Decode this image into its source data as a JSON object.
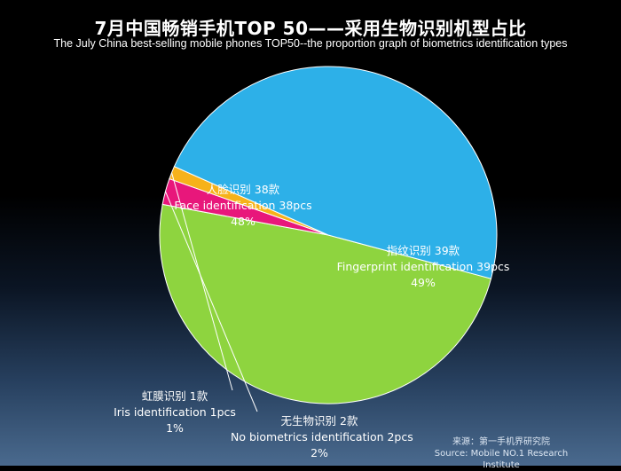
{
  "title": "7月中国畅销手机TOP 50——采用生物识别机型占比",
  "subtitle": "The July China best-selling mobile phones TOP50--the proportion graph of biometrics identification types",
  "source": {
    "zh": "来源：第一手机界研究院",
    "en": "Source: Mobile NO.1 Research Institute"
  },
  "chart_data": {
    "type": "pie",
    "title": "7月中国畅销手机TOP 50——采用生物识别机型占比",
    "subtitle": "The July China best-selling mobile phones TOP50--the proportion graph of biometrics identification types",
    "slices": [
      {
        "key": "finger",
        "zh": "指纹识别  39款",
        "en": "Fingerprint identification 39pcs",
        "count": 39,
        "percent": "49%",
        "color": "#8ed43f"
      },
      {
        "key": "none",
        "zh": "无生物识别  2款",
        "en": "No biometrics identification 2pcs",
        "count": 2,
        "percent": "2%",
        "color": "#e8177b"
      },
      {
        "key": "iris",
        "zh": "虹膜识别  1款",
        "en": "Iris identification 1pcs",
        "count": 1,
        "percent": "1%",
        "color": "#f6b21a"
      },
      {
        "key": "face",
        "zh": "人脸识别 38款",
        "en": "Face identification 38pcs",
        "count": 38,
        "percent": "48%",
        "color": "#2db0e8"
      }
    ]
  }
}
